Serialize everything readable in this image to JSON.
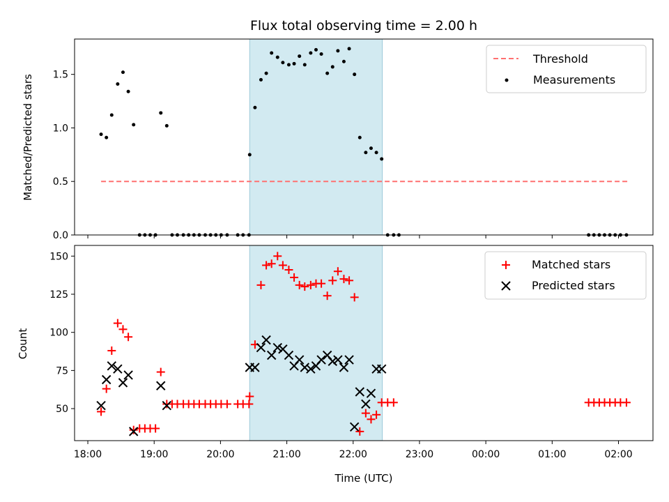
{
  "chart_data": {
    "type": "scatter",
    "title": "Flux total observing time = 2.00 h",
    "xlabel": "Time (UTC)",
    "x_unit": "hours since 18:00 UTC",
    "x_ticks": [
      {
        "value": 0,
        "label": "18:00"
      },
      {
        "value": 1,
        "label": "19:00"
      },
      {
        "value": 2,
        "label": "20:00"
      },
      {
        "value": 3,
        "label": "21:00"
      },
      {
        "value": 4,
        "label": "22:00"
      },
      {
        "value": 5,
        "label": "23:00"
      },
      {
        "value": 6,
        "label": "00:00"
      },
      {
        "value": 7,
        "label": "01:00"
      },
      {
        "value": 8,
        "label": "02:00"
      }
    ],
    "xlim": [
      -0.2,
      8.52
    ],
    "highlight_span": {
      "x0": 2.44,
      "x1": 4.44,
      "color": "#add8e6"
    },
    "top": {
      "ylabel": "Matched/Predicted stars",
      "ylim": [
        0,
        1.83
      ],
      "y_ticks": [
        {
          "value": 0,
          "label": "0.0"
        },
        {
          "value": 0.5,
          "label": "0.5"
        },
        {
          "value": 1,
          "label": "1.0"
        },
        {
          "value": 1.5,
          "label": "1.5"
        }
      ],
      "legend": [
        "Threshold",
        "Measurements"
      ],
      "threshold": {
        "name": "Threshold",
        "y": 0.5,
        "x": [
          0.2,
          8.15
        ],
        "color": "#ff7070"
      },
      "measurements": {
        "name": "Measurements",
        "x": [
          0.2,
          0.28,
          0.36,
          0.45,
          0.53,
          0.61,
          0.69,
          0.78,
          0.86,
          0.94,
          1.02,
          1.1,
          1.19,
          1.27,
          1.35,
          1.44,
          1.52,
          1.6,
          1.68,
          1.77,
          1.85,
          1.93,
          2.01,
          2.1,
          2.26,
          2.34,
          2.43,
          2.44,
          2.52,
          2.61,
          2.69,
          2.77,
          2.86,
          2.94,
          3.03,
          3.11,
          3.19,
          3.27,
          3.36,
          3.44,
          3.52,
          3.61,
          3.69,
          3.77,
          3.86,
          3.94,
          4.02,
          4.1,
          4.19,
          4.27,
          4.35,
          4.43,
          4.52,
          4.61,
          4.69,
          7.55,
          7.63,
          7.71,
          7.79,
          7.87,
          7.95,
          8.03,
          8.12
        ],
        "y": [
          0.94,
          0.91,
          1.12,
          1.41,
          1.52,
          1.34,
          1.03,
          0,
          0,
          0,
          0,
          1.14,
          1.02,
          0,
          0,
          0,
          0,
          0,
          0,
          0,
          0,
          0,
          0,
          0,
          0,
          0,
          0,
          0.75,
          1.19,
          1.45,
          1.51,
          1.7,
          1.66,
          1.61,
          1.59,
          1.6,
          1.67,
          1.59,
          1.7,
          1.73,
          1.69,
          1.51,
          1.57,
          1.72,
          1.62,
          1.74,
          1.5,
          0.91,
          0.77,
          0.81,
          0.77,
          0.71,
          0,
          0,
          0,
          0,
          0,
          0,
          0,
          0,
          0,
          0,
          0
        ]
      }
    },
    "bottom": {
      "ylabel": "Count",
      "ylim": [
        29,
        157
      ],
      "y_ticks": [
        {
          "value": 50,
          "label": "50"
        },
        {
          "value": 75,
          "label": "75"
        },
        {
          "value": 100,
          "label": "100"
        },
        {
          "value": 125,
          "label": "125"
        },
        {
          "value": 150,
          "label": "150"
        }
      ],
      "legend": [
        "Matched stars",
        "Predicted stars"
      ],
      "matched": {
        "name": "Matched stars",
        "color": "#ff0000",
        "x": [
          0.2,
          0.28,
          0.36,
          0.45,
          0.53,
          0.61,
          0.69,
          0.78,
          0.86,
          0.94,
          1.02,
          1.1,
          1.19,
          1.27,
          1.35,
          1.44,
          1.52,
          1.6,
          1.68,
          1.77,
          1.85,
          1.93,
          2.01,
          2.1,
          2.26,
          2.34,
          2.43,
          2.44,
          2.52,
          2.61,
          2.69,
          2.77,
          2.86,
          2.94,
          3.03,
          3.11,
          3.19,
          3.27,
          3.36,
          3.44,
          3.52,
          3.61,
          3.69,
          3.77,
          3.86,
          3.94,
          4.02,
          4.1,
          4.19,
          4.27,
          4.35,
          4.43,
          4.52,
          4.61,
          7.55,
          7.63,
          7.71,
          7.79,
          7.87,
          7.95,
          8.03,
          8.12
        ],
        "y": [
          48,
          63,
          88,
          106,
          102,
          97,
          36,
          37,
          37,
          37,
          37,
          74,
          53,
          53,
          53,
          53,
          53,
          53,
          53,
          53,
          53,
          53,
          53,
          53,
          53,
          53,
          53,
          58,
          92,
          131,
          144,
          145,
          150,
          144,
          141,
          136,
          131,
          130,
          131,
          132,
          132,
          124,
          134,
          140,
          135,
          134,
          123,
          35,
          47,
          43,
          46,
          54,
          54,
          54,
          54,
          54,
          54,
          54,
          54,
          54,
          54,
          54
        ]
      },
      "predicted": {
        "name": "Predicted stars",
        "color": "#000000",
        "x": [
          0.2,
          0.28,
          0.36,
          0.45,
          0.53,
          0.61,
          0.69,
          1.1,
          1.19,
          2.44,
          2.52,
          2.61,
          2.69,
          2.77,
          2.86,
          2.94,
          3.03,
          3.11,
          3.19,
          3.27,
          3.36,
          3.44,
          3.52,
          3.61,
          3.69,
          3.77,
          3.86,
          3.94,
          4.02,
          4.1,
          4.19,
          4.27,
          4.35,
          4.43
        ],
        "y": [
          52,
          69,
          78,
          76,
          67,
          72,
          35,
          65,
          52,
          77,
          77,
          90,
          95,
          85,
          90,
          89,
          85,
          78,
          82,
          77,
          76,
          78,
          82,
          85,
          81,
          82,
          77,
          82,
          38,
          61,
          53,
          60,
          76,
          76
        ]
      }
    }
  }
}
